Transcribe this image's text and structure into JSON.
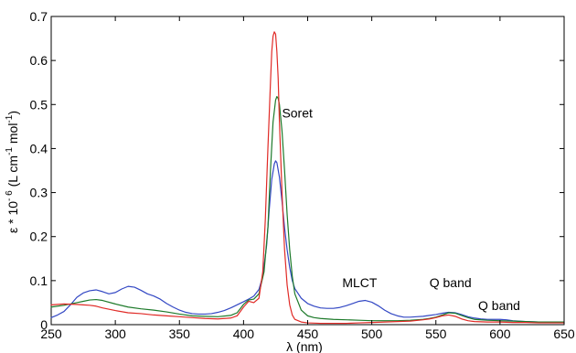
{
  "chart_data": {
    "type": "line",
    "title": "",
    "xlabel": "λ (nm)",
    "ylabel": {
      "prefix": "ε * 10",
      "exp1": "- 6",
      "middle": " (L cm",
      "exp2": "-1",
      "middle2": " mol",
      "exp3": "-1",
      "suffix": ")"
    },
    "xlim": [
      250,
      650
    ],
    "ylim": [
      0,
      0.7
    ],
    "xticks": [
      250,
      300,
      350,
      400,
      450,
      500,
      550,
      600,
      650
    ],
    "yticks": [
      0,
      0.1,
      0.2,
      0.3,
      0.4,
      0.5,
      0.6,
      0.7
    ],
    "xtick_labels": [
      "250",
      "300",
      "350",
      "400",
      "450",
      "500",
      "550",
      "600",
      "650"
    ],
    "ytick_labels": [
      "0",
      "0.1",
      "0.2",
      "0.3",
      "0.4",
      "0.5",
      "0.6",
      "0.7"
    ],
    "grid": false,
    "legend": false,
    "series": [
      {
        "color": "#3348c4",
        "x": [
          250,
          255,
          260,
          265,
          270,
          275,
          280,
          285,
          290,
          295,
          300,
          305,
          310,
          315,
          320,
          325,
          330,
          335,
          340,
          345,
          350,
          355,
          360,
          365,
          370,
          375,
          380,
          385,
          390,
          395,
          400,
          404,
          408,
          412,
          415,
          418,
          420,
          422,
          424,
          425,
          426,
          428,
          430,
          432,
          434,
          436,
          438,
          440,
          445,
          450,
          455,
          460,
          465,
          470,
          475,
          480,
          485,
          490,
          495,
          500,
          505,
          510,
          515,
          520,
          525,
          530,
          535,
          540,
          545,
          550,
          555,
          560,
          565,
          570,
          575,
          580,
          585,
          590,
          595,
          600,
          605,
          610,
          620,
          630,
          640,
          650
        ],
        "values": [
          0.016,
          0.022,
          0.03,
          0.045,
          0.062,
          0.072,
          0.077,
          0.079,
          0.075,
          0.07,
          0.073,
          0.081,
          0.087,
          0.085,
          0.078,
          0.07,
          0.065,
          0.058,
          0.048,
          0.04,
          0.033,
          0.028,
          0.025,
          0.024,
          0.024,
          0.025,
          0.028,
          0.032,
          0.038,
          0.045,
          0.052,
          0.058,
          0.065,
          0.08,
          0.11,
          0.18,
          0.26,
          0.33,
          0.365,
          0.372,
          0.368,
          0.335,
          0.28,
          0.22,
          0.17,
          0.13,
          0.1,
          0.082,
          0.06,
          0.048,
          0.042,
          0.038,
          0.037,
          0.037,
          0.039,
          0.043,
          0.048,
          0.053,
          0.055,
          0.051,
          0.043,
          0.033,
          0.025,
          0.02,
          0.017,
          0.017,
          0.018,
          0.019,
          0.021,
          0.023,
          0.026,
          0.028,
          0.027,
          0.023,
          0.018,
          0.015,
          0.013,
          0.012,
          0.012,
          0.012,
          0.011,
          0.009,
          0.007,
          0.006,
          0.005,
          0.005
        ]
      },
      {
        "color": "#1d7a2a",
        "x": [
          250,
          260,
          270,
          275,
          280,
          285,
          290,
          300,
          310,
          320,
          330,
          340,
          350,
          360,
          370,
          380,
          390,
          395,
          400,
          404,
          408,
          412,
          416,
          419,
          421,
          423,
          425,
          426,
          427,
          428,
          430,
          432,
          434,
          436,
          438,
          440,
          445,
          450,
          455,
          460,
          470,
          480,
          490,
          500,
          510,
          520,
          530,
          540,
          545,
          550,
          555,
          560,
          565,
          570,
          575,
          580,
          590,
          600,
          610,
          620,
          630,
          640,
          650
        ],
        "values": [
          0.04,
          0.044,
          0.05,
          0.053,
          0.056,
          0.057,
          0.055,
          0.047,
          0.04,
          0.036,
          0.033,
          0.029,
          0.024,
          0.02,
          0.019,
          0.018,
          0.021,
          0.027,
          0.046,
          0.056,
          0.058,
          0.07,
          0.12,
          0.22,
          0.35,
          0.46,
          0.51,
          0.518,
          0.514,
          0.5,
          0.44,
          0.35,
          0.25,
          0.17,
          0.11,
          0.07,
          0.033,
          0.02,
          0.016,
          0.014,
          0.012,
          0.011,
          0.01,
          0.009,
          0.009,
          0.009,
          0.01,
          0.012,
          0.014,
          0.017,
          0.022,
          0.027,
          0.026,
          0.021,
          0.016,
          0.012,
          0.01,
          0.009,
          0.008,
          0.007,
          0.006,
          0.006,
          0.006
        ]
      },
      {
        "color": "#e02a26",
        "x": [
          250,
          260,
          270,
          275,
          280,
          285,
          290,
          300,
          310,
          320,
          330,
          340,
          350,
          360,
          370,
          380,
          390,
          395,
          400,
          404,
          408,
          412,
          415,
          417,
          419,
          421,
          422,
          423,
          424,
          425,
          426,
          427,
          428,
          430,
          432,
          434,
          436,
          438,
          440,
          445,
          450,
          460,
          470,
          480,
          490,
          500,
          510,
          520,
          530,
          540,
          545,
          550,
          555,
          560,
          565,
          570,
          575,
          580,
          590,
          600,
          610,
          620,
          630,
          640,
          650
        ],
        "values": [
          0.045,
          0.047,
          0.046,
          0.045,
          0.044,
          0.042,
          0.038,
          0.032,
          0.027,
          0.025,
          0.022,
          0.02,
          0.018,
          0.016,
          0.014,
          0.013,
          0.015,
          0.02,
          0.04,
          0.053,
          0.05,
          0.06,
          0.12,
          0.24,
          0.4,
          0.55,
          0.62,
          0.655,
          0.665,
          0.66,
          0.62,
          0.56,
          0.46,
          0.3,
          0.17,
          0.09,
          0.045,
          0.022,
          0.012,
          0.006,
          0.004,
          0.003,
          0.003,
          0.003,
          0.004,
          0.005,
          0.006,
          0.007,
          0.008,
          0.011,
          0.013,
          0.016,
          0.02,
          0.022,
          0.019,
          0.013,
          0.009,
          0.007,
          0.006,
          0.006,
          0.005,
          0.005,
          0.004,
          0.004,
          0.004
        ]
      }
    ],
    "annotations": [
      {
        "text": "Soret",
        "x": 430,
        "y": 0.47
      },
      {
        "text": "MLCT",
        "x": 477,
        "y": 0.085
      },
      {
        "text": "Q band",
        "x": 545,
        "y": 0.085
      },
      {
        "text": "Q band",
        "x": 583,
        "y": 0.033
      }
    ]
  }
}
